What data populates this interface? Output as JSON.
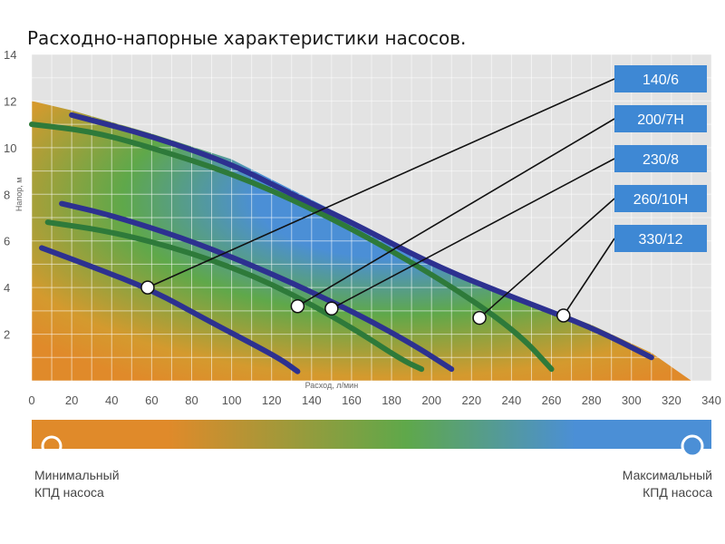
{
  "chart_data": {
    "type": "line",
    "title": "Расходно-напорные характеристики насосов.",
    "xlabel": "Расход, л/мин",
    "ylabel": "Напор, м",
    "xlim": [
      0,
      340
    ],
    "ylim": [
      0,
      14
    ],
    "x_ticks": [
      "0",
      "20",
      "40",
      "60",
      "80",
      "100",
      "120",
      "140",
      "160",
      "180",
      "200",
      "220",
      "240",
      "260",
      "280",
      "300",
      "320",
      "340"
    ],
    "y_ticks": [
      "2",
      "4",
      "6",
      "8",
      "10",
      "12",
      "14"
    ],
    "grid": true,
    "background_colors": [
      "#e08a2a",
      "#5fa84a",
      "#4b8fd6"
    ],
    "series": [
      {
        "name": "140/6",
        "color": "#2d3190",
        "x": [
          5,
          30,
          60,
          90,
          110,
          125,
          133
        ],
        "y": [
          5.7,
          4.9,
          3.9,
          2.5,
          1.6,
          0.9,
          0.4
        ],
        "marker": [
          58,
          4.0
        ]
      },
      {
        "name": "200/7Н",
        "color": "#2d3190",
        "x": [
          15,
          40,
          80,
          120,
          160,
          190,
          210
        ],
        "y": [
          7.6,
          7.1,
          6.0,
          4.6,
          3.0,
          1.6,
          0.5
        ],
        "marker": [
          133,
          3.2
        ]
      },
      {
        "name": "230/8",
        "color": "#2e7a3a",
        "x": [
          8,
          40,
          80,
          120,
          160,
          185,
          195
        ],
        "y": [
          6.8,
          6.4,
          5.5,
          4.2,
          2.3,
          0.9,
          0.5
        ],
        "marker": [
          150,
          3.1
        ]
      },
      {
        "name": "260/10Н",
        "color": "#2e7a3a",
        "x": [
          0,
          30,
          60,
          100,
          140,
          180,
          220,
          245,
          260
        ],
        "y": [
          11.0,
          10.7,
          10.0,
          8.9,
          7.4,
          5.6,
          3.5,
          1.9,
          0.5
        ],
        "marker": [
          224,
          2.7
        ]
      },
      {
        "name": "330/12",
        "color": "#2d3190",
        "x": [
          20,
          60,
          100,
          130,
          160,
          200,
          240,
          280,
          310
        ],
        "y": [
          11.4,
          10.5,
          9.3,
          8.0,
          6.8,
          5.0,
          3.6,
          2.3,
          1.0
        ],
        "marker": [
          266,
          2.8
        ]
      }
    ]
  },
  "colorbar": {
    "min_label": [
      "Минимальный",
      "КПД насоса"
    ],
    "max_label": [
      "Максимальный",
      "КПД насоса"
    ],
    "min_color": "#e08a2a",
    "max_color": "#4b8fd6"
  }
}
